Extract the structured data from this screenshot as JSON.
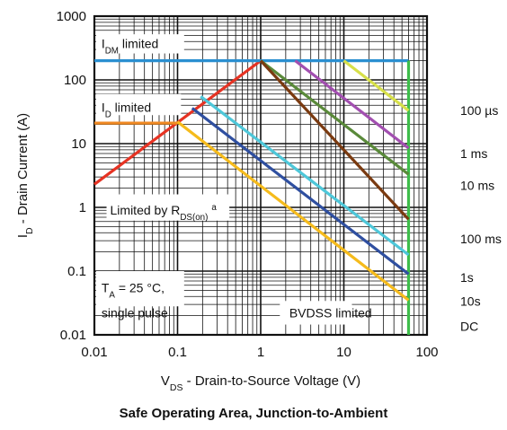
{
  "caption": "Safe Operating Area, Junction-to-Ambient",
  "chart_data": {
    "type": "line",
    "title": "Safe Operating Area, Junction-to-Ambient",
    "xlabel": {
      "main": "V",
      "sub": "DS",
      "rest": " - Drain-to-Source Voltage (V)"
    },
    "ylabel": {
      "main": "I",
      "sub": "D",
      "rest": " - Drain Current (A)"
    },
    "x_scale": "log",
    "y_scale": "log",
    "xlim": [
      0.01,
      100
    ],
    "ylim": [
      0.01,
      1000
    ],
    "grid": true,
    "x_ticks": [
      {
        "value": 0.01,
        "label": "0.01"
      },
      {
        "value": 0.1,
        "label": "0.1"
      },
      {
        "value": 1,
        "label": "1"
      },
      {
        "value": 10,
        "label": "10"
      },
      {
        "value": 100,
        "label": "100"
      }
    ],
    "y_ticks": [
      {
        "value": 0.01,
        "label": "0.01"
      },
      {
        "value": 0.1,
        "label": "0.1"
      },
      {
        "value": 1,
        "label": "1"
      },
      {
        "value": 10,
        "label": "10"
      },
      {
        "value": 100,
        "label": "100"
      },
      {
        "value": 1000,
        "label": "1000"
      }
    ],
    "series": [
      {
        "name": "100 µs",
        "color": "#d7e04a",
        "points": [
          [
            10,
            200
          ],
          [
            60,
            33
          ]
        ]
      },
      {
        "name": "1 ms",
        "color": "#a24fb0",
        "points": [
          [
            2.6,
            200
          ],
          [
            60,
            8.5
          ]
        ]
      },
      {
        "name": "10 ms",
        "color": "#5a8a3a",
        "points": [
          [
            1,
            200
          ],
          [
            60,
            3.3
          ]
        ]
      },
      {
        "name": "100 ms",
        "color": "#7a3a10",
        "points": [
          [
            1,
            200
          ],
          [
            60,
            0.65
          ]
        ]
      },
      {
        "name": "1s",
        "color": "#4ec7d9",
        "points": [
          [
            0.19,
            55
          ],
          [
            60,
            0.18
          ]
        ]
      },
      {
        "name": "10s",
        "color": "#2f4fa0",
        "points": [
          [
            0.15,
            36
          ],
          [
            60,
            0.09
          ]
        ]
      },
      {
        "name": "DC",
        "color": "#f5bb1c",
        "points": [
          [
            0.1,
            22
          ],
          [
            60,
            0.035
          ]
        ]
      }
    ],
    "limits": [
      {
        "name": "Limited by RDS(on)",
        "color": "#e63323",
        "points": [
          [
            0.01,
            2.3
          ],
          [
            1,
            200
          ]
        ]
      },
      {
        "name": "IDM limited",
        "color": "#2a8fd0",
        "points": [
          [
            0.01,
            200
          ],
          [
            60,
            200
          ]
        ]
      },
      {
        "name": "ID limited",
        "color": "#f08a24",
        "points": [
          [
            0.01,
            21
          ],
          [
            0.1,
            21
          ]
        ]
      },
      {
        "name": "BVDSS limited",
        "color": "#3dbd4a",
        "points": [
          [
            60,
            200
          ],
          [
            60,
            0.01
          ]
        ]
      }
    ],
    "annotations": [
      {
        "id": "idm",
        "main": "I",
        "sub": "DM",
        "rest": " limited",
        "x": 0.011,
        "y": 370
      },
      {
        "id": "id",
        "main": "I",
        "sub": "D",
        "rest": " limited",
        "x": 0.011,
        "y": 37
      },
      {
        "id": "rds",
        "main": "Limited by R",
        "sub": "DS(on)",
        "rest": "",
        "sup": "a",
        "x": 0.014,
        "y": 0.9
      },
      {
        "id": "ta",
        "main": "T",
        "sub": "A",
        "rest": " = 25 °C,",
        "x": 0.011,
        "y": 0.055
      },
      {
        "id": "sp",
        "main": "single pulse",
        "sub": "",
        "rest": "",
        "x": 0.011,
        "y": 0.022
      },
      {
        "id": "bv",
        "main": "BVDSS limited",
        "sub": "",
        "rest": "",
        "x": 2.0,
        "y": 0.022
      }
    ],
    "right_labels": [
      {
        "text": "100 µs",
        "y": 33
      },
      {
        "text": "1 ms",
        "y": 7
      },
      {
        "text": "10 ms",
        "y": 2.2
      },
      {
        "text": "100 ms",
        "y": 0.32
      },
      {
        "text": "1s",
        "y": 0.08
      },
      {
        "text": "10s",
        "y": 0.034
      },
      {
        "text": "DC",
        "y": 0.0135
      }
    ]
  }
}
